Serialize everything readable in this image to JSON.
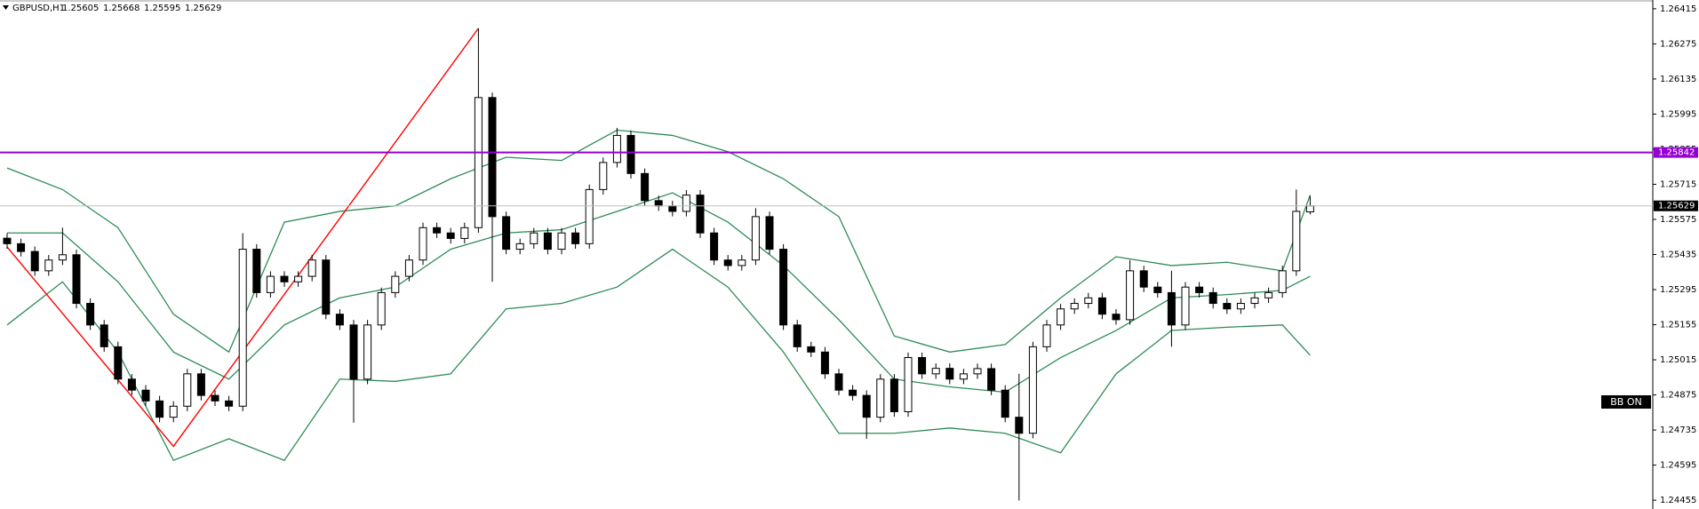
{
  "chart_data": {
    "type": "candlestick",
    "symbol": "GBPUSD,H1",
    "badge": "BB ON",
    "ylim": [
      1.2442,
      1.2645
    ],
    "yticks": [
      1.26415,
      1.26275,
      1.26135,
      1.25995,
      1.25855,
      1.25715,
      1.25575,
      1.25435,
      1.25295,
      1.25155,
      1.25015,
      1.24875,
      1.24735,
      1.24595,
      1.24455
    ],
    "up_color": "#ffffff",
    "down_color": "#000000",
    "candles": [
      [
        1.255,
        1.2552,
        1.25458,
        1.25478
      ],
      [
        1.25478,
        1.25498,
        1.25427,
        1.25447
      ],
      [
        1.25447,
        1.25467,
        1.2535,
        1.2537
      ],
      [
        1.2537,
        1.25433,
        1.2535,
        1.25413
      ],
      [
        1.25413,
        1.25542,
        1.25393,
        1.25434
      ],
      [
        1.25434,
        1.25454,
        1.2522,
        1.2524
      ],
      [
        1.2524,
        1.2526,
        1.25134,
        1.25154
      ],
      [
        1.25154,
        1.25174,
        1.25047,
        1.25067
      ],
      [
        1.25067,
        1.25087,
        1.24918,
        1.24938
      ],
      [
        1.24938,
        1.24958,
        1.24874,
        1.24894
      ],
      [
        1.24894,
        1.24914,
        1.24831,
        1.24851
      ],
      [
        1.24851,
        1.24871,
        1.24766,
        1.24786
      ],
      [
        1.24786,
        1.2485,
        1.24766,
        1.2483
      ],
      [
        1.2483,
        1.24979,
        1.2481,
        1.24959
      ],
      [
        1.24959,
        1.24979,
        1.24853,
        1.24873
      ],
      [
        1.24873,
        1.24893,
        1.24831,
        1.24851
      ],
      [
        1.24851,
        1.24871,
        1.2481,
        1.2483
      ],
      [
        1.2483,
        1.2552,
        1.2481,
        1.25456
      ],
      [
        1.25456,
        1.25476,
        1.25263,
        1.25283
      ],
      [
        1.25283,
        1.25368,
        1.25263,
        1.25348
      ],
      [
        1.25348,
        1.25368,
        1.25306,
        1.25326
      ],
      [
        1.25326,
        1.25368,
        1.25306,
        1.25348
      ],
      [
        1.25348,
        1.25433,
        1.25328,
        1.25413
      ],
      [
        1.25413,
        1.25433,
        1.25177,
        1.25197
      ],
      [
        1.25197,
        1.25217,
        1.25134,
        1.25154
      ],
      [
        1.25154,
        1.25174,
        1.24764,
        1.24938
      ],
      [
        1.24938,
        1.25174,
        1.24918,
        1.25154
      ],
      [
        1.25154,
        1.25303,
        1.25134,
        1.25283
      ],
      [
        1.25283,
        1.25368,
        1.25263,
        1.25348
      ],
      [
        1.25348,
        1.25433,
        1.25328,
        1.25413
      ],
      [
        1.25413,
        1.25562,
        1.25393,
        1.25542
      ],
      [
        1.25542,
        1.25562,
        1.25501,
        1.25521
      ],
      [
        1.25521,
        1.25541,
        1.25479,
        1.25499
      ],
      [
        1.25499,
        1.25562,
        1.25479,
        1.25542
      ],
      [
        1.25542,
        1.26337,
        1.25522,
        1.26061
      ],
      [
        1.26061,
        1.26081,
        1.25326,
        1.25586
      ],
      [
        1.25586,
        1.25606,
        1.25436,
        1.25456
      ],
      [
        1.25456,
        1.25498,
        1.25436,
        1.25478
      ],
      [
        1.25478,
        1.25541,
        1.25458,
        1.25521
      ],
      [
        1.25521,
        1.25541,
        1.25436,
        1.25456
      ],
      [
        1.25456,
        1.25541,
        1.25436,
        1.25521
      ],
      [
        1.25521,
        1.25541,
        1.25458,
        1.25478
      ],
      [
        1.25478,
        1.25714,
        1.25458,
        1.25694
      ],
      [
        1.25694,
        1.25822,
        1.25674,
        1.25802
      ],
      [
        1.25802,
        1.2594,
        1.25782,
        1.2591
      ],
      [
        1.2591,
        1.2593,
        1.25738,
        1.25758
      ],
      [
        1.25758,
        1.25778,
        1.2563,
        1.2565
      ],
      [
        1.2565,
        1.2567,
        1.25609,
        1.25629
      ],
      [
        1.25629,
        1.25649,
        1.25587,
        1.25607
      ],
      [
        1.25607,
        1.25692,
        1.25587,
        1.25672
      ],
      [
        1.25672,
        1.25692,
        1.25501,
        1.25521
      ],
      [
        1.25521,
        1.25541,
        1.25393,
        1.25413
      ],
      [
        1.25413,
        1.25433,
        1.25371,
        1.25391
      ],
      [
        1.25391,
        1.25433,
        1.25371,
        1.25413
      ],
      [
        1.25413,
        1.2562,
        1.25393,
        1.25586
      ],
      [
        1.25586,
        1.25606,
        1.25436,
        1.25456
      ],
      [
        1.25456,
        1.25476,
        1.25134,
        1.25154
      ],
      [
        1.25154,
        1.25174,
        1.25047,
        1.25067
      ],
      [
        1.25067,
        1.25087,
        1.25026,
        1.25046
      ],
      [
        1.25046,
        1.25066,
        1.24939,
        1.24959
      ],
      [
        1.24959,
        1.24979,
        1.24874,
        1.24894
      ],
      [
        1.24894,
        1.24914,
        1.24853,
        1.24873
      ],
      [
        1.24873,
        1.24893,
        1.247,
        1.24786
      ],
      [
        1.24786,
        1.24958,
        1.24766,
        1.24938
      ],
      [
        1.24938,
        1.24958,
        1.24788,
        1.24808
      ],
      [
        1.24808,
        1.25044,
        1.24788,
        1.25024
      ],
      [
        1.25024,
        1.25044,
        1.24939,
        1.24959
      ],
      [
        1.24959,
        1.25001,
        1.24939,
        1.24981
      ],
      [
        1.24981,
        1.25001,
        1.24918,
        1.24938
      ],
      [
        1.24938,
        1.24979,
        1.24918,
        1.24959
      ],
      [
        1.24959,
        1.25,
        1.24939,
        1.2498
      ],
      [
        1.2498,
        1.25,
        1.24874,
        1.24894
      ],
      [
        1.24894,
        1.24914,
        1.24766,
        1.24786
      ],
      [
        1.24786,
        1.24959,
        1.24454,
        1.24722
      ],
      [
        1.24722,
        1.25087,
        1.24702,
        1.25067
      ],
      [
        1.25067,
        1.25174,
        1.25047,
        1.25154
      ],
      [
        1.25154,
        1.25238,
        1.25134,
        1.25218
      ],
      [
        1.25218,
        1.2526,
        1.25198,
        1.2524
      ],
      [
        1.2524,
        1.25282,
        1.2522,
        1.25262
      ],
      [
        1.25262,
        1.25282,
        1.25177,
        1.25197
      ],
      [
        1.25197,
        1.25217,
        1.25155,
        1.25175
      ],
      [
        1.25175,
        1.25413,
        1.25155,
        1.2537
      ],
      [
        1.2537,
        1.2539,
        1.25285,
        1.25305
      ],
      [
        1.25305,
        1.25325,
        1.25263,
        1.25283
      ],
      [
        1.25283,
        1.2537,
        1.25067,
        1.25154
      ],
      [
        1.25154,
        1.25325,
        1.25134,
        1.25305
      ],
      [
        1.25305,
        1.25325,
        1.25263,
        1.25283
      ],
      [
        1.25283,
        1.25303,
        1.2522,
        1.2524
      ],
      [
        1.2524,
        1.2526,
        1.25198,
        1.25218
      ],
      [
        1.25218,
        1.2526,
        1.25198,
        1.2524
      ],
      [
        1.2524,
        1.25282,
        1.2522,
        1.25262
      ],
      [
        1.25262,
        1.25303,
        1.25242,
        1.25283
      ],
      [
        1.25283,
        1.2539,
        1.25263,
        1.2537
      ],
      [
        1.2537,
        1.25694,
        1.2535,
        1.25607
      ],
      [
        1.25605,
        1.25668,
        1.25595,
        1.25629
      ]
    ],
    "band_x": [
      0,
      4,
      8,
      12,
      16,
      20,
      24,
      28,
      32,
      36,
      40,
      44,
      48,
      52,
      56,
      60,
      64,
      68,
      72,
      76,
      80,
      84,
      88,
      92,
      94
    ],
    "bands": [
      {
        "color": "#2e8b57",
        "values": [
          1.2578,
          1.25694,
          1.25542,
          1.25197,
          1.25046,
          1.25564,
          1.25607,
          1.25629,
          1.25737,
          1.25823,
          1.2581,
          1.25931,
          1.2591,
          1.25845,
          1.25737,
          1.25586,
          1.2511,
          1.25046,
          1.25076,
          1.25262,
          1.25426,
          1.25391,
          1.25404,
          1.2537,
          1.25672
        ]
      },
      {
        "color": "#2e8b57",
        "values": [
          1.25521,
          1.25521,
          1.25326,
          1.25046,
          1.24938,
          1.25154,
          1.25262,
          1.25305,
          1.25456,
          1.25521,
          1.25534,
          1.25607,
          1.25681,
          1.25564,
          1.25391,
          1.25175,
          1.24938,
          1.24907,
          1.24886,
          1.25024,
          1.25132,
          1.25262,
          1.25275,
          1.25292,
          1.25348
        ]
      },
      {
        "color": "#2e8b57",
        "values": [
          1.25154,
          1.25326,
          1.25046,
          1.24614,
          1.247,
          1.24614,
          1.24938,
          1.24929,
          1.24959,
          1.25218,
          1.2524,
          1.25305,
          1.25456,
          1.25305,
          1.25046,
          1.24722,
          1.24722,
          1.24743,
          1.24722,
          1.24644,
          1.24959,
          1.25132,
          1.25145,
          1.25154,
          1.25033
        ]
      }
    ],
    "trendline": {
      "color": "#ff0000",
      "x": [
        0,
        12,
        34
      ],
      "y": [
        1.25465,
        1.2467,
        1.26337
      ]
    },
    "levels": [
      {
        "value": 1.25842,
        "color": "#9400d3"
      }
    ],
    "price_line_color": "#c0c0c0"
  }
}
